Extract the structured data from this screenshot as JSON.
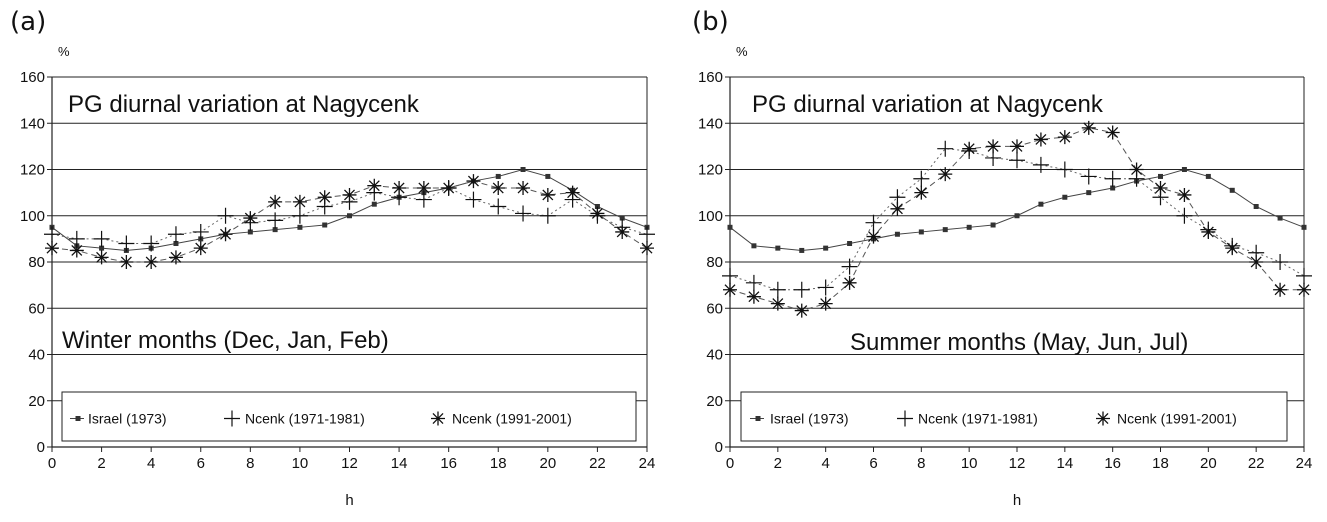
{
  "chart_data": [
    {
      "type": "line",
      "panel": "(a)",
      "title": "PG diurnal variation at Nagycenk",
      "subtitle": "Winter months (Dec, Jan, Feb)",
      "xlabel": "h",
      "ylabel": "%",
      "xlim": [
        0,
        24
      ],
      "ylim": [
        0,
        160
      ],
      "xticks": [
        0,
        2,
        4,
        6,
        8,
        10,
        12,
        14,
        16,
        18,
        20,
        22,
        24
      ],
      "yticks": [
        0,
        20,
        40,
        60,
        80,
        100,
        120,
        140,
        160
      ],
      "grid": true,
      "legend_position": "bottom",
      "x": [
        0,
        1,
        2,
        3,
        4,
        5,
        6,
        7,
        8,
        9,
        10,
        11,
        12,
        13,
        14,
        15,
        16,
        17,
        18,
        19,
        20,
        21,
        22,
        23,
        24
      ],
      "series": [
        {
          "name": "Israel (1973)",
          "marker": "square",
          "line": "solid",
          "values": [
            95,
            87,
            86,
            85,
            86,
            88,
            90,
            92,
            93,
            94,
            95,
            96,
            100,
            105,
            108,
            110,
            112,
            115,
            117,
            120,
            117,
            111,
            104,
            99,
            95
          ]
        },
        {
          "name": "Ncenk (1971-1981)",
          "marker": "plus",
          "line": "dotted",
          "values": [
            92,
            90,
            90,
            88,
            88,
            92,
            93,
            100,
            97,
            98,
            100,
            104,
            106,
            110,
            108,
            107,
            112,
            107,
            104,
            101,
            100,
            107,
            100,
            95,
            92
          ]
        },
        {
          "name": "Ncenk (1991-2001)",
          "marker": "asterisk",
          "line": "dashed",
          "values": [
            86,
            85,
            82,
            80,
            80,
            82,
            86,
            92,
            99,
            106,
            106,
            108,
            109,
            113,
            112,
            112,
            112,
            115,
            112,
            112,
            109,
            110,
            101,
            93,
            86
          ]
        }
      ]
    },
    {
      "type": "line",
      "panel": "(b)",
      "title": "PG diurnal variation at Nagycenk",
      "subtitle": "Summer months (May, Jun, Jul)",
      "xlabel": "h",
      "ylabel": "%",
      "xlim": [
        0,
        24
      ],
      "ylim": [
        0,
        160
      ],
      "xticks": [
        0,
        2,
        4,
        6,
        8,
        10,
        12,
        14,
        16,
        18,
        20,
        22,
        24
      ],
      "yticks": [
        0,
        20,
        40,
        60,
        80,
        100,
        120,
        140,
        160
      ],
      "grid": true,
      "legend_position": "bottom",
      "x": [
        0,
        1,
        2,
        3,
        4,
        5,
        6,
        7,
        8,
        9,
        10,
        11,
        12,
        13,
        14,
        15,
        16,
        17,
        18,
        19,
        20,
        21,
        22,
        23,
        24
      ],
      "series": [
        {
          "name": "Israel (1973)",
          "marker": "square",
          "line": "solid",
          "values": [
            95,
            87,
            86,
            85,
            86,
            88,
            90,
            92,
            93,
            94,
            95,
            96,
            100,
            105,
            108,
            110,
            112,
            115,
            117,
            120,
            117,
            111,
            104,
            99,
            95
          ]
        },
        {
          "name": "Ncenk (1971-1981)",
          "marker": "plus",
          "line": "dotted",
          "values": [
            74,
            71,
            68,
            68,
            69,
            78,
            97,
            108,
            116,
            129,
            128,
            125,
            124,
            122,
            120,
            117,
            116,
            116,
            108,
            100,
            94,
            87,
            84,
            80,
            74
          ]
        },
        {
          "name": "Ncenk (1991-2001)",
          "marker": "asterisk",
          "line": "dashed",
          "values": [
            68,
            65,
            62,
            59,
            62,
            71,
            91,
            103,
            110,
            118,
            129,
            130,
            130,
            133,
            134,
            138,
            136,
            120,
            112,
            109,
            93,
            86,
            80,
            68,
            68
          ]
        }
      ]
    }
  ]
}
